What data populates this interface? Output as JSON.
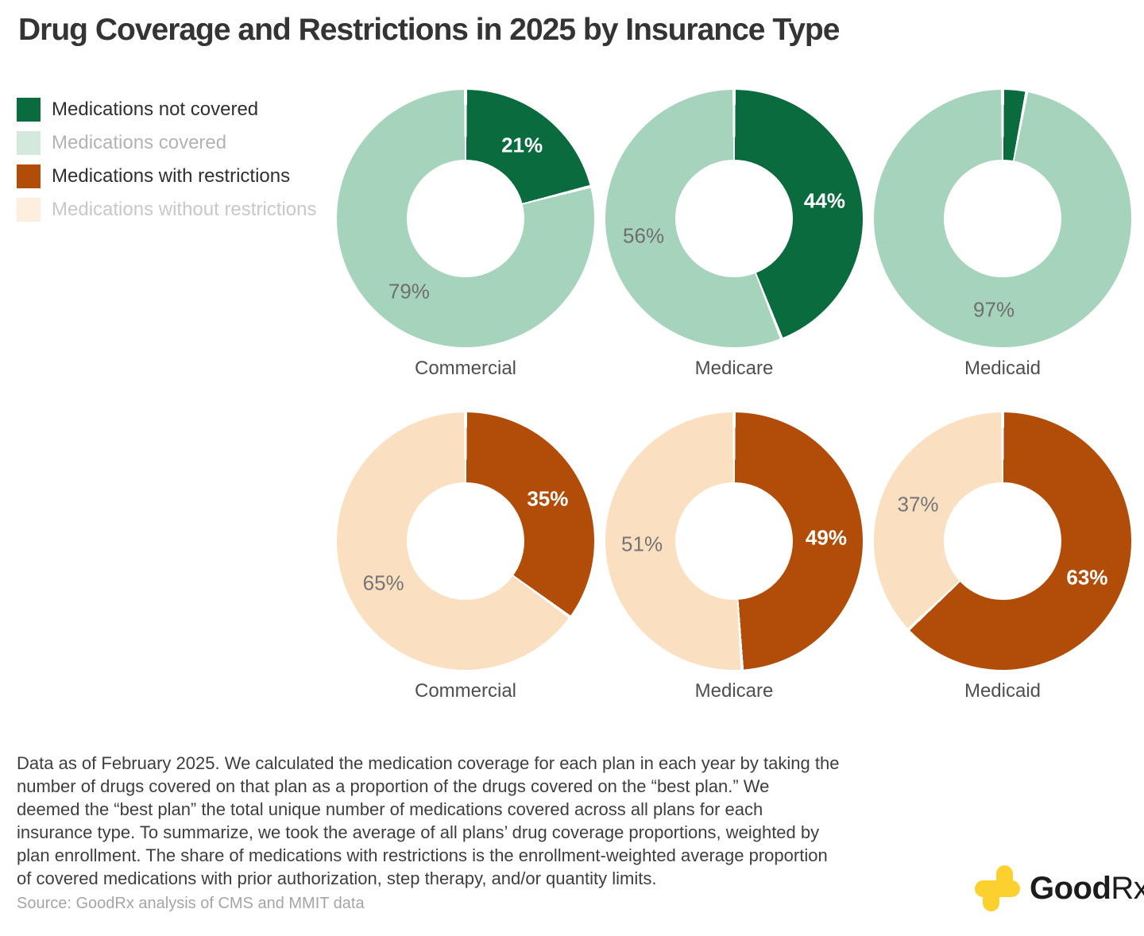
{
  "title": "Drug Coverage and Restrictions in 2025 by Insurance Type",
  "legend": {
    "items": [
      {
        "label": "Medications not covered",
        "swatch": "#0a6b3e",
        "text_color": "#2f2f2f"
      },
      {
        "label": "Medications covered",
        "swatch": "#d3e9dd",
        "text_color": "#b3b3b3"
      },
      {
        "label": "Medications with restrictions",
        "swatch": "#b24c09",
        "text_color": "#2f2f2f"
      },
      {
        "label": "Medications without restrictions",
        "swatch": "#fdeedd",
        "text_color": "#c8c8c8"
      }
    ]
  },
  "chart_data": {
    "type": "donut-grid",
    "start_angle_deg": 0,
    "direction": "clockwise",
    "rows": [
      {
        "name": "coverage",
        "charts": [
          {
            "category": "Commercial",
            "slices": [
              {
                "label": "Medications not covered",
                "value": 21,
                "pct_label": "21%",
                "color": "#0a6b3e",
                "pct_color": "#ffffff",
                "pct_bold": true
              },
              {
                "label": "Medications covered",
                "value": 79,
                "pct_label": "79%",
                "color": "#a6d3bb",
                "pct_color": "#6f6f6f",
                "pct_bold": false
              }
            ]
          },
          {
            "category": "Medicare",
            "slices": [
              {
                "label": "Medications not covered",
                "value": 44,
                "pct_label": "44%",
                "color": "#0a6b3e",
                "pct_color": "#ffffff",
                "pct_bold": true
              },
              {
                "label": "Medications covered",
                "value": 56,
                "pct_label": "56%",
                "color": "#a6d3bb",
                "pct_color": "#6f6f6f",
                "pct_bold": false
              }
            ]
          },
          {
            "category": "Medicaid",
            "slices": [
              {
                "label": "Medications not covered",
                "value": 3,
                "pct_label": null,
                "color": "#0a6b3e",
                "pct_color": "#ffffff",
                "pct_bold": true
              },
              {
                "label": "Medications covered",
                "value": 97,
                "pct_label": "97%",
                "color": "#a6d3bb",
                "pct_color": "#6f6f6f",
                "pct_bold": false
              }
            ]
          }
        ]
      },
      {
        "name": "restrictions",
        "charts": [
          {
            "category": "Commercial",
            "slices": [
              {
                "label": "Medications with restrictions",
                "value": 35,
                "pct_label": "35%",
                "color": "#b24c09",
                "pct_color": "#ffffff",
                "pct_bold": true
              },
              {
                "label": "Medications without restrictions",
                "value": 65,
                "pct_label": "65%",
                "color": "#fadfc1",
                "pct_color": "#757575",
                "pct_bold": false
              }
            ]
          },
          {
            "category": "Medicare",
            "slices": [
              {
                "label": "Medications with restrictions",
                "value": 49,
                "pct_label": "49%",
                "color": "#b24c09",
                "pct_color": "#ffffff",
                "pct_bold": true
              },
              {
                "label": "Medications without restrictions",
                "value": 51,
                "pct_label": "51%",
                "color": "#fadfc1",
                "pct_color": "#757575",
                "pct_bold": false
              }
            ]
          },
          {
            "category": "Medicaid",
            "slices": [
              {
                "label": "Medications with restrictions",
                "value": 63,
                "pct_label": "63%",
                "color": "#b24c09",
                "pct_color": "#ffffff",
                "pct_bold": true
              },
              {
                "label": "Medications without restrictions",
                "value": 37,
                "pct_label": "37%",
                "color": "#fadfc1",
                "pct_color": "#757575",
                "pct_bold": false
              }
            ]
          }
        ]
      }
    ]
  },
  "footnote": "Data as of February 2025. We calculated the medication coverage for each plan in each year by taking the\nnumber of drugs covered on that plan as a proportion of the drugs covered on the “best plan.” We\ndeemed the “best plan” the total unique number of medications covered across all plans for each\ninsurance type. To summarize, we took the average of all plans’ drug coverage proportions, weighted by\nplan enrollment. The share of medications with restrictions is the enrollment-weighted average proportion\nof covered medications with prior authorization, step therapy, and/or quantity limits.",
  "source": "Source: GoodRx analysis of CMS and MMIT data",
  "logo": {
    "brand_bold": "Good",
    "brand_regular": "Rx",
    "plus_color": "#fcd12f"
  }
}
